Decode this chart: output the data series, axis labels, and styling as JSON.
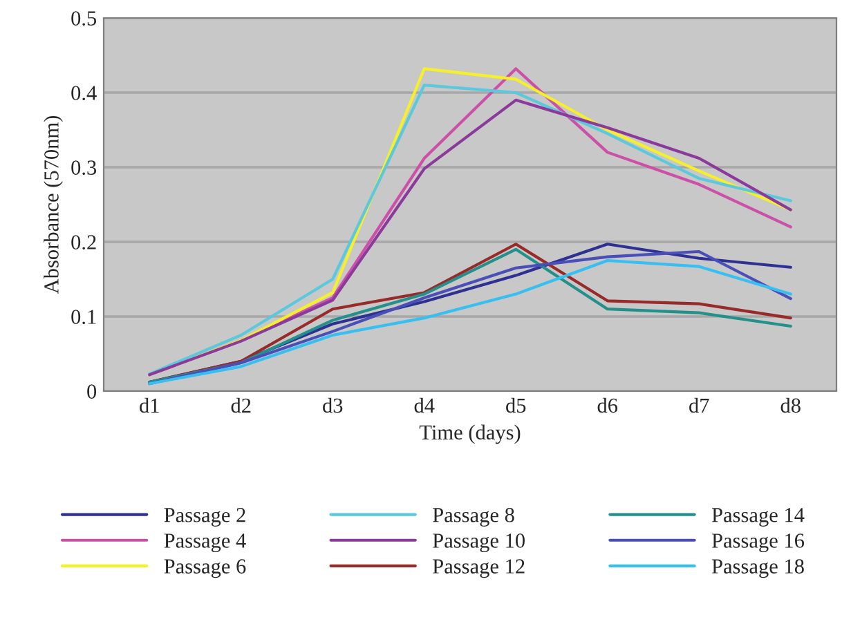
{
  "chart_data": {
    "type": "line",
    "xlabel": "Time (days)",
    "ylabel": "Absorbance (570nm)",
    "categories": [
      "d1",
      "d2",
      "d3",
      "d4",
      "d5",
      "d6",
      "d7",
      "d8"
    ],
    "ylim": [
      0,
      0.5
    ],
    "yticks": [
      0,
      0.1,
      0.2,
      0.3,
      0.4,
      0.5
    ],
    "grid": "y",
    "legend": "bottom",
    "marker": "none",
    "line_style": "solid",
    "series": [
      {
        "name": "Passage 2",
        "color": "#2e3192",
        "values": [
          0.012,
          0.04,
          0.09,
          0.12,
          0.155,
          0.197,
          0.178,
          0.166
        ]
      },
      {
        "name": "Passage 4",
        "color": "#cc4fa8",
        "values": [
          0.022,
          0.068,
          0.125,
          0.312,
          0.432,
          0.32,
          0.277,
          0.22
        ]
      },
      {
        "name": "Passage 6",
        "color": "#f5f02a",
        "values": [
          0.022,
          0.068,
          0.132,
          0.432,
          0.418,
          0.35,
          0.295,
          0.243
        ]
      },
      {
        "name": "Passage 8",
        "color": "#5bc8dc",
        "values": [
          0.023,
          0.075,
          0.15,
          0.41,
          0.4,
          0.345,
          0.285,
          0.255
        ]
      },
      {
        "name": "Passage 10",
        "color": "#8b3a9c",
        "values": [
          0.022,
          0.067,
          0.122,
          0.298,
          0.39,
          0.353,
          0.312,
          0.243
        ]
      },
      {
        "name": "Passage 12",
        "color": "#982a2a",
        "values": [
          0.012,
          0.04,
          0.11,
          0.132,
          0.197,
          0.121,
          0.117,
          0.098
        ]
      },
      {
        "name": "Passage 14",
        "color": "#23908a",
        "values": [
          0.012,
          0.038,
          0.095,
          0.13,
          0.19,
          0.11,
          0.105,
          0.087
        ]
      },
      {
        "name": "Passage 16",
        "color": "#4a4fb8",
        "values": [
          0.01,
          0.038,
          0.08,
          0.125,
          0.165,
          0.18,
          0.187,
          0.124
        ]
      },
      {
        "name": "Passage 18",
        "color": "#36bff0",
        "values": [
          0.01,
          0.033,
          0.075,
          0.098,
          0.13,
          0.175,
          0.167,
          0.13
        ]
      }
    ]
  }
}
